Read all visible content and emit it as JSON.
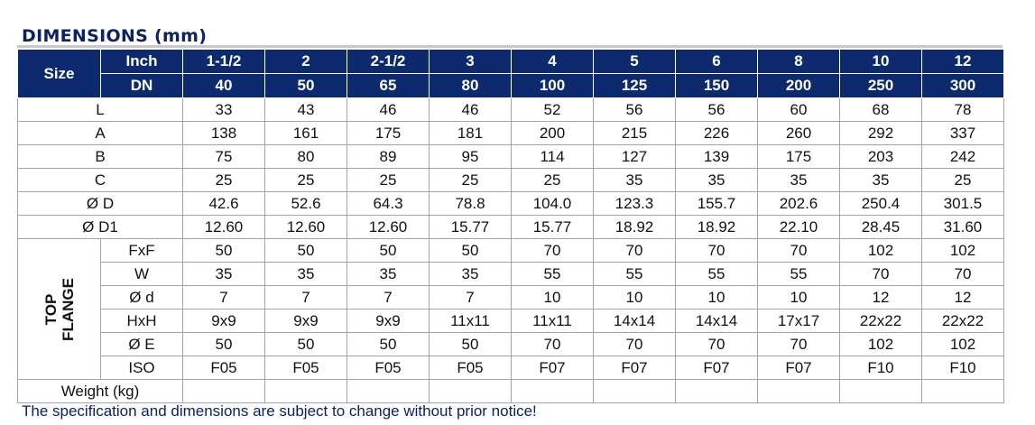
{
  "title": "DIMENSIONS (mm)",
  "header": {
    "size": "Size",
    "inch_label": "Inch",
    "dn_label": "DN",
    "inch": [
      "1-1/2",
      "2",
      "2-1/2",
      "3",
      "4",
      "5",
      "6",
      "8",
      "10",
      "12"
    ],
    "dn": [
      "40",
      "50",
      "65",
      "80",
      "100",
      "125",
      "150",
      "200",
      "250",
      "300"
    ]
  },
  "rows": [
    {
      "label": "L",
      "values": [
        "33",
        "43",
        "46",
        "46",
        "52",
        "56",
        "56",
        "60",
        "68",
        "78"
      ]
    },
    {
      "label": "A",
      "values": [
        "138",
        "161",
        "175",
        "181",
        "200",
        "215",
        "226",
        "260",
        "292",
        "337"
      ]
    },
    {
      "label": "B",
      "values": [
        "75",
        "80",
        "89",
        "95",
        "114",
        "127",
        "139",
        "175",
        "203",
        "242"
      ]
    },
    {
      "label": "C",
      "values": [
        "25",
        "25",
        "25",
        "25",
        "25",
        "35",
        "35",
        "35",
        "35",
        "25"
      ]
    },
    {
      "label": "Ø D",
      "values": [
        "42.6",
        "52.6",
        "64.3",
        "78.8",
        "104.0",
        "123.3",
        "155.7",
        "202.6",
        "250.4",
        "301.5"
      ]
    },
    {
      "label": "Ø D1",
      "values": [
        "12.60",
        "12.60",
        "12.60",
        "15.77",
        "15.77",
        "18.92",
        "18.92",
        "22.10",
        "28.45",
        "31.60"
      ]
    }
  ],
  "flange": {
    "group_line1": "TOP",
    "group_line2": "FLANGE",
    "rows": [
      {
        "label": "FxF",
        "values": [
          "50",
          "50",
          "50",
          "50",
          "70",
          "70",
          "70",
          "70",
          "102",
          "102"
        ]
      },
      {
        "label": "W",
        "values": [
          "35",
          "35",
          "35",
          "35",
          "55",
          "55",
          "55",
          "55",
          "70",
          "70"
        ]
      },
      {
        "label": "Ø d",
        "values": [
          "7",
          "7",
          "7",
          "7",
          "10",
          "10",
          "10",
          "10",
          "12",
          "12"
        ]
      },
      {
        "label": "HxH",
        "values": [
          "9x9",
          "9x9",
          "9x9",
          "11x11",
          "11x11",
          "14x14",
          "14x14",
          "17x17",
          "22x22",
          "22x22"
        ]
      },
      {
        "label": "Ø E",
        "values": [
          "50",
          "50",
          "50",
          "50",
          "70",
          "70",
          "70",
          "70",
          "102",
          "102"
        ]
      },
      {
        "label": "ISO",
        "values": [
          "F05",
          "F05",
          "F05",
          "F05",
          "F07",
          "F07",
          "F07",
          "F07",
          "F10",
          "F10"
        ]
      }
    ]
  },
  "weight": {
    "label": "Weight (kg)",
    "values": [
      "",
      "",
      "",
      "",
      "",
      "",
      "",
      "",
      "",
      ""
    ]
  },
  "note": "The specification and dimensions are subject to change without prior notice!"
}
